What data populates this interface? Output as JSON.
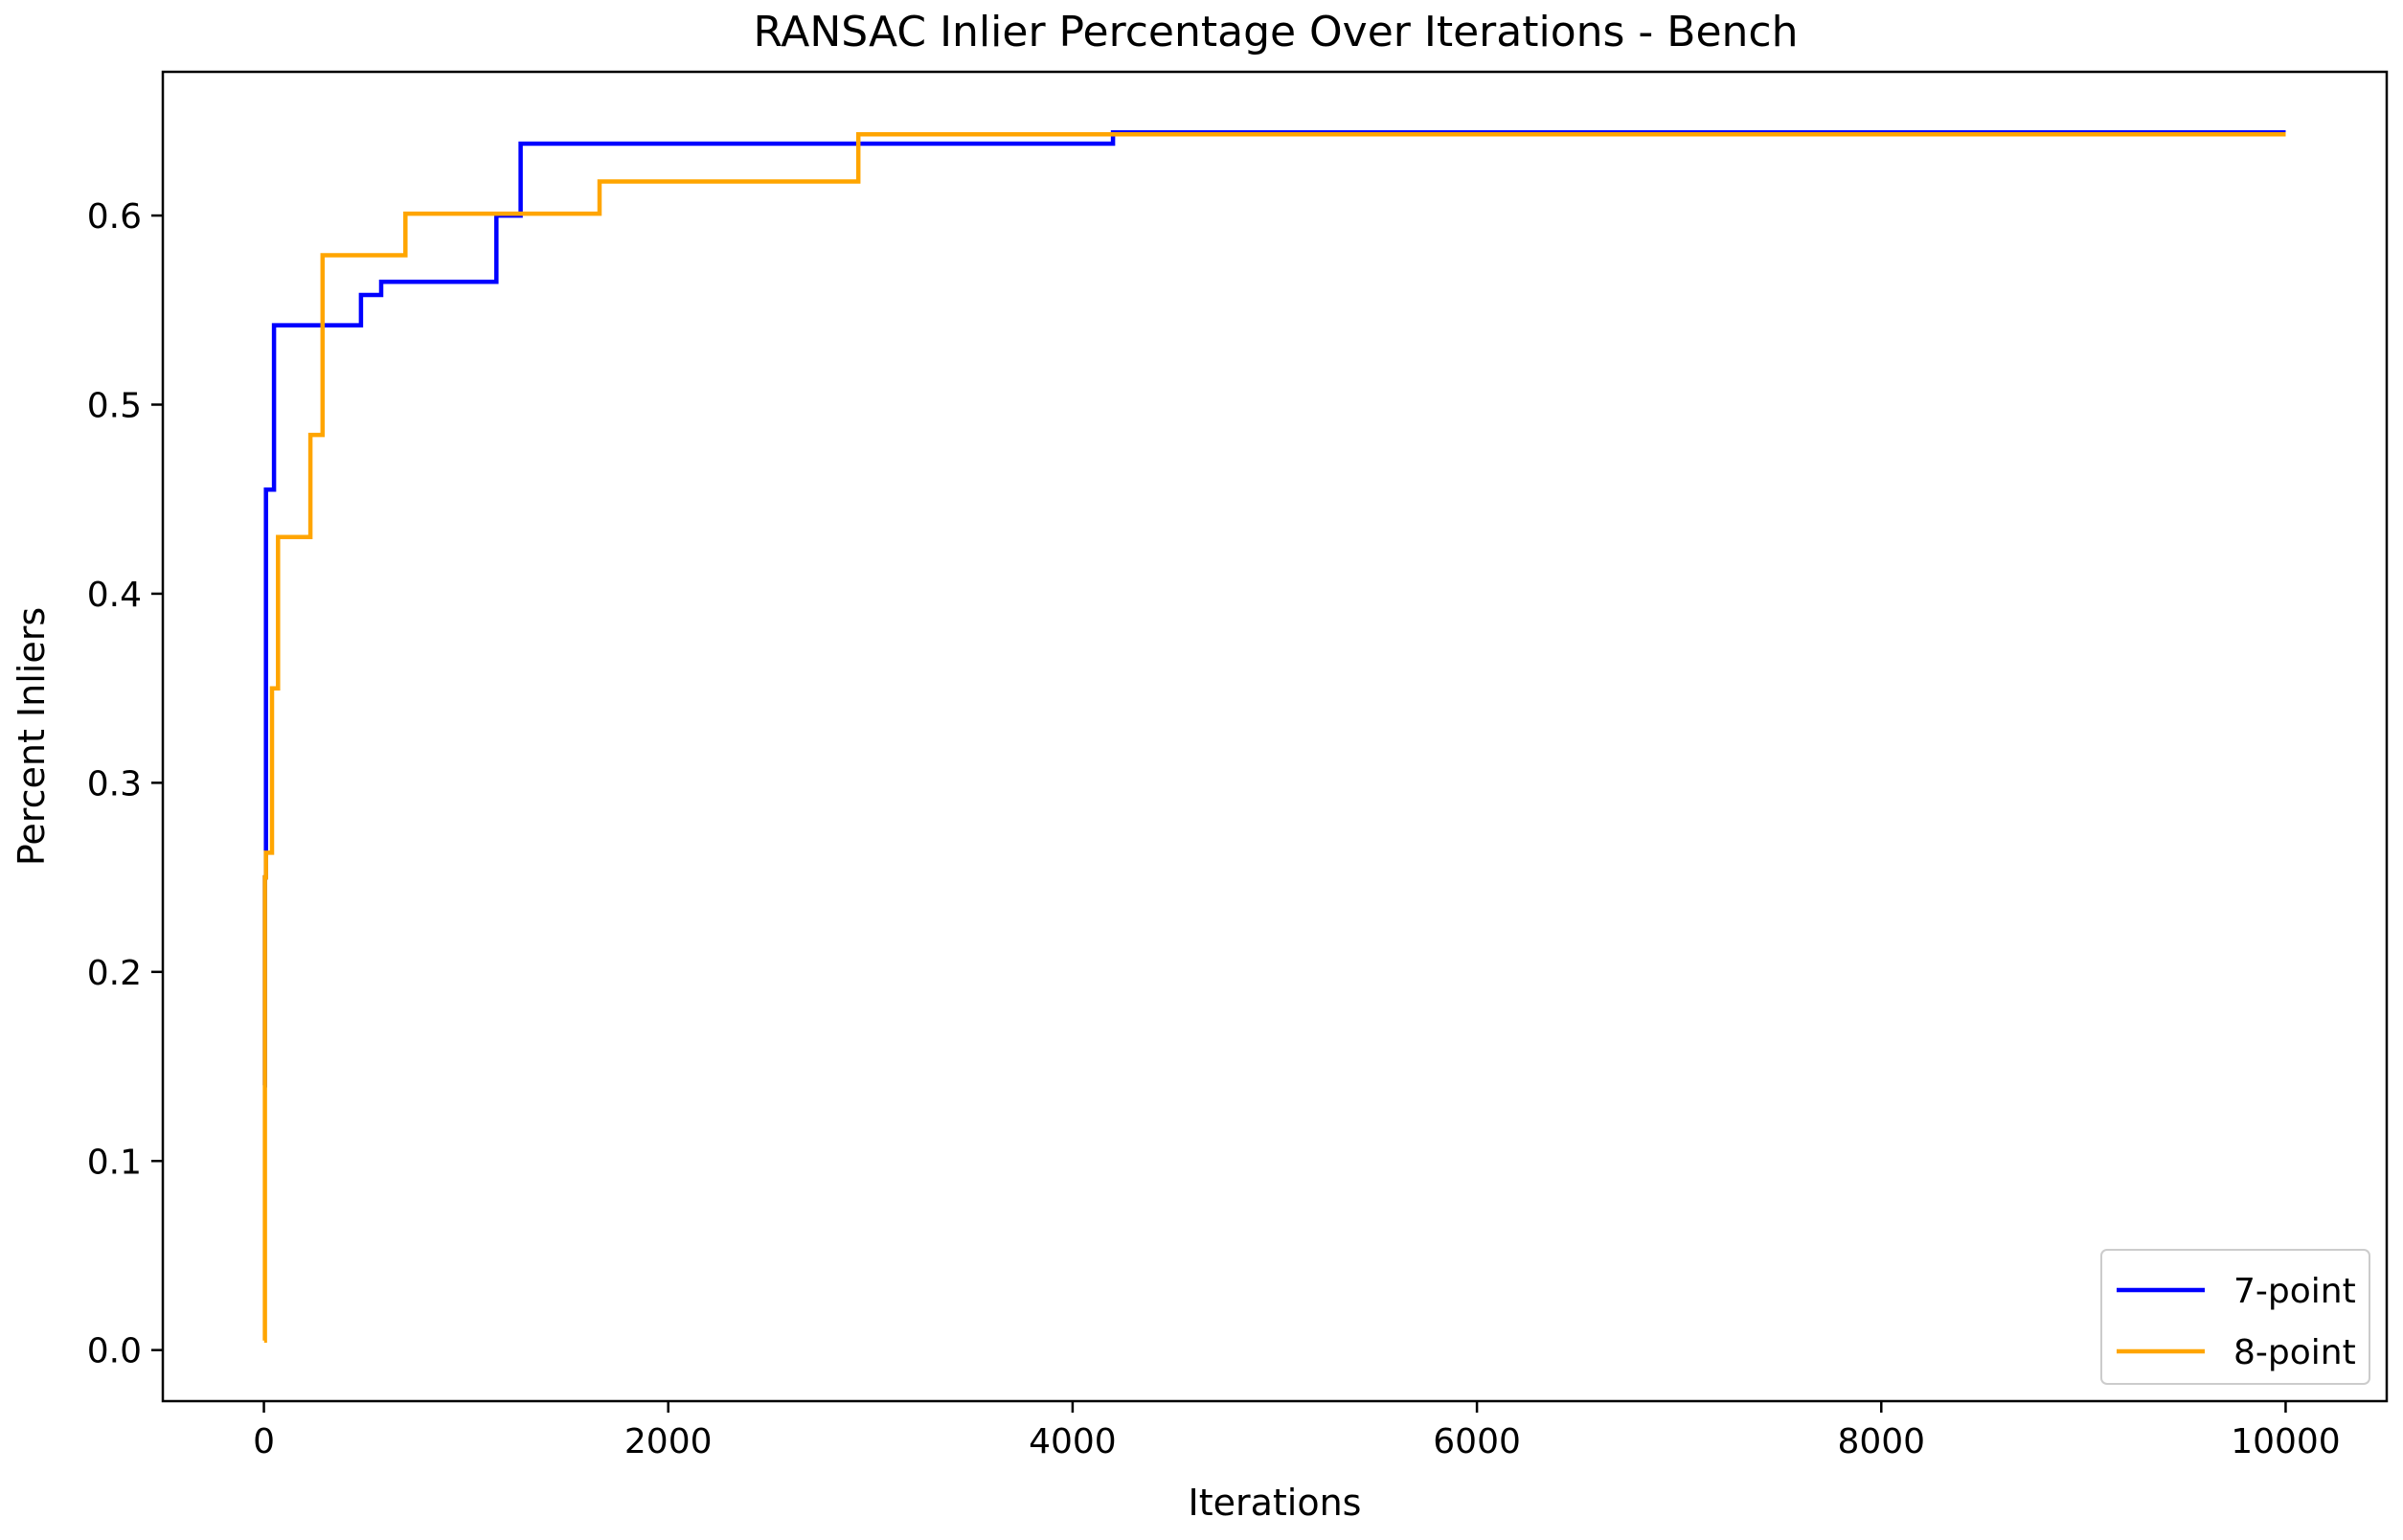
{
  "chart_data": {
    "type": "line",
    "title": "RANSAC Inlier Percentage Over Iterations - Bench",
    "xlabel": "Iterations",
    "ylabel": "Percent Inliers",
    "xlim": [
      -500,
      10500
    ],
    "ylim": [
      -0.027,
      0.676
    ],
    "xticks": [
      0,
      2000,
      4000,
      6000,
      8000,
      10000
    ],
    "xtick_labels": [
      "0",
      "2000",
      "4000",
      "6000",
      "8000",
      "10000"
    ],
    "yticks": [
      0.0,
      0.1,
      0.2,
      0.3,
      0.4,
      0.5,
      0.6
    ],
    "ytick_labels": [
      "0.0",
      "0.1",
      "0.2",
      "0.3",
      "0.4",
      "0.5",
      "0.6"
    ],
    "grid": false,
    "legend": "lower right",
    "series": [
      {
        "name": "7-point",
        "color": "#0000ff",
        "x": [
          1,
          5,
          10,
          20,
          50,
          480,
          580,
          1150,
          1270,
          4200,
          10000
        ],
        "y": [
          0.14,
          0.25,
          0.455,
          0.455,
          0.542,
          0.558,
          0.565,
          0.6,
          0.638,
          0.644,
          0.644
        ]
      },
      {
        "name": "8-point",
        "color": "#ffa500",
        "x": [
          1,
          5,
          10,
          40,
          70,
          230,
          290,
          700,
          1660,
          2940,
          10000
        ],
        "y": [
          0.005,
          0.25,
          0.263,
          0.35,
          0.43,
          0.484,
          0.579,
          0.601,
          0.618,
          0.643,
          0.643
        ]
      }
    ]
  }
}
